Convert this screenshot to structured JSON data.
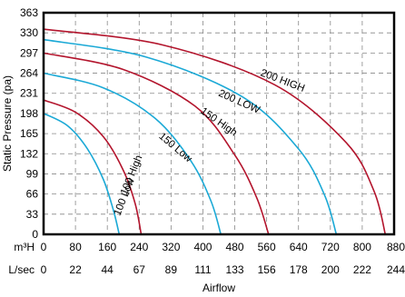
{
  "chart_data": {
    "type": "line",
    "ylabel": "Static Pressure (pa)",
    "xlabel": "Airflow",
    "ylim": [
      0,
      363
    ],
    "xlim": [
      0,
      880
    ],
    "grid": true,
    "y_ticks": [
      0,
      33,
      66,
      99,
      132,
      165,
      198,
      231,
      264,
      297,
      330,
      363
    ],
    "x_ticks_m3h": [
      0,
      80,
      160,
      240,
      320,
      400,
      480,
      560,
      640,
      720,
      800,
      880
    ],
    "x_ticks_lsec": [
      0,
      22,
      44,
      67,
      89,
      111,
      133,
      156,
      178,
      200,
      222,
      244
    ],
    "x_unit_m3h": "m³H",
    "x_unit_lsec": "L/sec",
    "colors": {
      "high": "#b3152d",
      "low": "#1ba9d6"
    },
    "series": [
      {
        "name": "100 Low",
        "color_key": "low",
        "x": [
          0,
          60,
          110,
          150,
          175,
          190
        ],
        "y": [
          198,
          178,
          140,
          90,
          40,
          0
        ]
      },
      {
        "name": "100 High",
        "color_key": "high",
        "x": [
          0,
          80,
          150,
          200,
          230,
          245
        ],
        "y": [
          220,
          200,
          160,
          105,
          50,
          0
        ]
      },
      {
        "name": "150 Low",
        "color_key": "low",
        "x": [
          0,
          150,
          280,
          370,
          420,
          445
        ],
        "y": [
          264,
          240,
          190,
          120,
          55,
          0
        ]
      },
      {
        "name": "150 High",
        "color_key": "high",
        "x": [
          0,
          200,
          380,
          480,
          535,
          565
        ],
        "y": [
          297,
          270,
          210,
          130,
          60,
          0
        ]
      },
      {
        "name": "200 LOW",
        "color_key": "low",
        "x": [
          0,
          260,
          500,
          640,
          705,
          735
        ],
        "y": [
          319,
          290,
          225,
          140,
          65,
          0
        ]
      },
      {
        "name": "200 HIGH",
        "color_key": "high",
        "x": [
          0,
          300,
          580,
          760,
          830,
          858
        ],
        "y": [
          336,
          310,
          245,
          150,
          70,
          0
        ]
      }
    ]
  }
}
